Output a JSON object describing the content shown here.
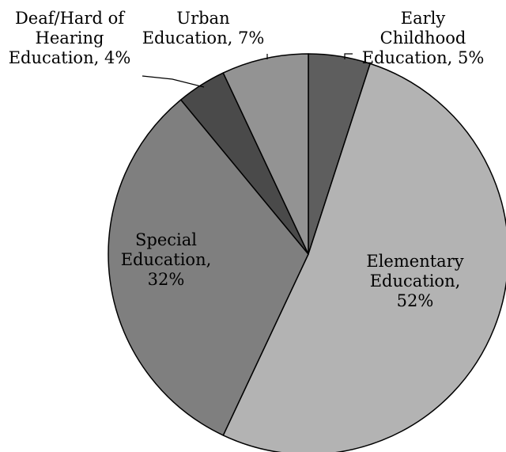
{
  "chart_data": {
    "type": "pie",
    "title": "",
    "start": "12 o'clock",
    "direction": "clockwise",
    "legend": "none",
    "slices": [
      {
        "category": "Early Childhood Education",
        "value": 5,
        "label_lines": [
          "Early",
          "Childhood",
          "Education, 5%"
        ],
        "color": "#5e5e5e"
      },
      {
        "category": "Elementary Education",
        "value": 52,
        "label_lines": [
          "Elementary",
          "Education,",
          "52%"
        ],
        "color": "#b3b3b3"
      },
      {
        "category": "Special Education",
        "value": 32,
        "label_lines": [
          "Special",
          "Education,",
          "32%"
        ],
        "color": "#7f7f7f"
      },
      {
        "category": "Deaf/Hard of Hearing Education",
        "value": 4,
        "label_lines": [
          "Deaf/Hard of",
          "Hearing",
          "Education, 4%"
        ],
        "color": "#4a4a4a"
      },
      {
        "category": "Urban Education",
        "value": 7,
        "label_lines": [
          "Urban",
          "Education, 7%"
        ],
        "color": "#939393"
      }
    ]
  }
}
